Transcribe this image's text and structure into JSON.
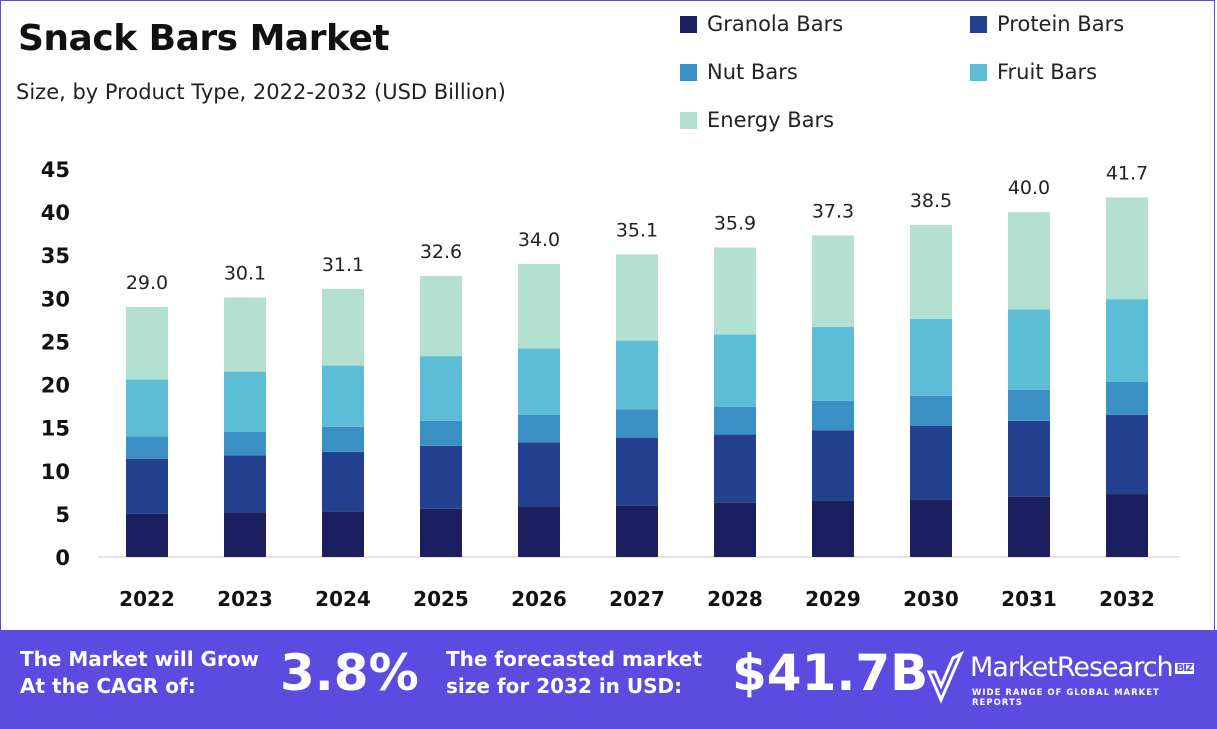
{
  "chart_data": {
    "type": "bar",
    "stacked": true,
    "title": "Snack Bars Market",
    "subtitle": "Size, by Product Type, 2022-2032 (USD Billion)",
    "xlabel": "",
    "ylabel": "",
    "ylim": [
      0,
      45
    ],
    "yticks": [
      0,
      5,
      10,
      15,
      20,
      25,
      30,
      35,
      40,
      45
    ],
    "grid": false,
    "legend_position": "top-right",
    "categories": [
      "2022",
      "2023",
      "2024",
      "2025",
      "2026",
      "2027",
      "2028",
      "2029",
      "2030",
      "2031",
      "2032"
    ],
    "series": [
      {
        "name": "Granola Bars",
        "color": "#1b1f5f",
        "values": [
          5.0,
          5.2,
          5.3,
          5.6,
          5.9,
          6.0,
          6.3,
          6.5,
          6.7,
          7.0,
          7.3
        ]
      },
      {
        "name": "Protein Bars",
        "color": "#24418f",
        "values": [
          6.4,
          6.6,
          6.9,
          7.3,
          7.4,
          7.8,
          7.9,
          8.2,
          8.5,
          8.8,
          9.2
        ]
      },
      {
        "name": "Nut Bars",
        "color": "#3a90c4",
        "values": [
          2.6,
          2.7,
          2.9,
          2.9,
          3.2,
          3.3,
          3.2,
          3.4,
          3.5,
          3.6,
          3.8
        ]
      },
      {
        "name": "Fruit Bars",
        "color": "#5dbdd6",
        "values": [
          6.6,
          7.0,
          7.1,
          7.5,
          7.7,
          8.0,
          8.4,
          8.6,
          8.9,
          9.3,
          9.6
        ]
      },
      {
        "name": "Energy Bars",
        "color": "#b3e0d0",
        "values": [
          8.4,
          8.6,
          8.9,
          9.3,
          9.8,
          10.0,
          10.1,
          10.6,
          10.9,
          11.3,
          11.8
        ]
      }
    ],
    "totals": [
      "29.0",
      "30.1",
      "31.1",
      "32.6",
      "34.0",
      "35.1",
      "35.9",
      "37.3",
      "38.5",
      "40.0",
      "41.7"
    ]
  },
  "banner": {
    "cagr_label_1": "The Market will Grow",
    "cagr_label_2": "At the CAGR of:",
    "cagr_value": "3.8%",
    "forecast_label_1": "The forecasted market",
    "forecast_label_2": "size for 2032 in USD:",
    "forecast_value": "$41.7B",
    "logo_text": "MarketResearch",
    "logo_badge": "BIZ",
    "logo_tagline": "WIDE RANGE OF GLOBAL MARKET REPORTS"
  },
  "colors": {
    "banner": "#5b4be0"
  }
}
